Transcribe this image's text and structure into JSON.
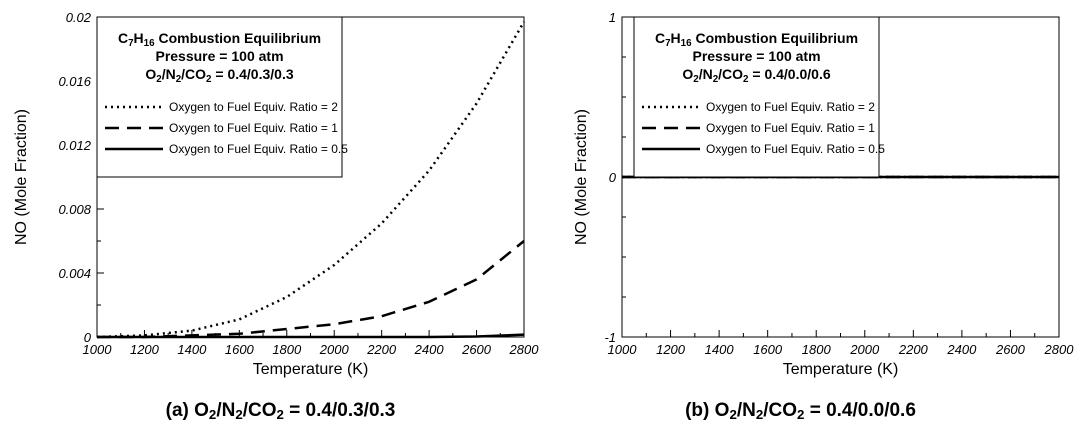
{
  "chart_data": [
    {
      "type": "line",
      "caption": "(a) O₂/N₂/CO₂ = 0.4/0.3/0.3",
      "xlabel": "Temperature (K)",
      "ylabel": "NO (Mole Fraction)",
      "xlim": [
        1000,
        2800
      ],
      "ylim": [
        0,
        0.02
      ],
      "xticks": [
        "1000",
        "1200",
        "1400",
        "1600",
        "1800",
        "2000",
        "2200",
        "2400",
        "2600",
        "2800"
      ],
      "yticks": [
        "0",
        "0.004",
        "0.008",
        "0.012",
        "0.016",
        "0.02"
      ],
      "legend": {
        "title_lines": [
          "C₇H₁₆ Combustion Equilibrium",
          "Pressure = 100 atm",
          "O₂/N₂/CO₂ = 0.4/0.3/0.3"
        ],
        "placement": "top-left"
      },
      "x": [
        1000,
        1200,
        1400,
        1600,
        1800,
        2000,
        2200,
        2400,
        2600,
        2800
      ],
      "series": [
        {
          "name": "Oxygen to Fuel Equiv. Ratio = 2",
          "style": "dotted",
          "values": [
            0.0,
            0.0001,
            0.0004,
            0.0011,
            0.0025,
            0.0045,
            0.0071,
            0.0104,
            0.0146,
            0.0197
          ]
        },
        {
          "name": "Oxygen to Fuel Equiv. Ratio = 1",
          "style": "dashed",
          "values": [
            0.0,
            0.0,
            0.0001,
            0.0002,
            0.0005,
            0.0008,
            0.0013,
            0.0022,
            0.0036,
            0.006
          ]
        },
        {
          "name": "Oxygen to Fuel Equiv. Ratio = 0.5",
          "style": "solid",
          "values": [
            0.0,
            0.0,
            0.0,
            0.0,
            0.0,
            0.0,
            0.0,
            0.0,
            3e-05,
            0.00015
          ]
        }
      ]
    },
    {
      "type": "line",
      "caption": "(b) O₂/N₂/CO₂ = 0.4/0.0/0.6",
      "xlabel": "Temperature (K)",
      "ylabel": "NO (Mole Fraction)",
      "xlim": [
        1000,
        2800
      ],
      "ylim": [
        -1,
        1
      ],
      "xticks": [
        "1000",
        "1200",
        "1400",
        "1600",
        "1800",
        "2000",
        "2200",
        "2400",
        "2600",
        "2800"
      ],
      "yticks": [
        "-1",
        "0",
        "1"
      ],
      "legend": {
        "title_lines": [
          "C₇H₁₆ Combustion Equilibrium",
          "Pressure = 100 atm",
          "O₂/N₂/CO₂ = 0.4/0.0/0.6"
        ],
        "placement": "top-left"
      },
      "x": [
        1000,
        2800
      ],
      "series": [
        {
          "name": "Oxygen to Fuel Equiv. Ratio = 2",
          "style": "dotted",
          "values": [
            0,
            0
          ]
        },
        {
          "name": "Oxygen to Fuel Equiv. Ratio = 1",
          "style": "dashed",
          "values": [
            0,
            0
          ]
        },
        {
          "name": "Oxygen to Fuel Equiv. Ratio = 0.5",
          "style": "solid",
          "values": [
            0,
            0
          ]
        }
      ]
    }
  ]
}
